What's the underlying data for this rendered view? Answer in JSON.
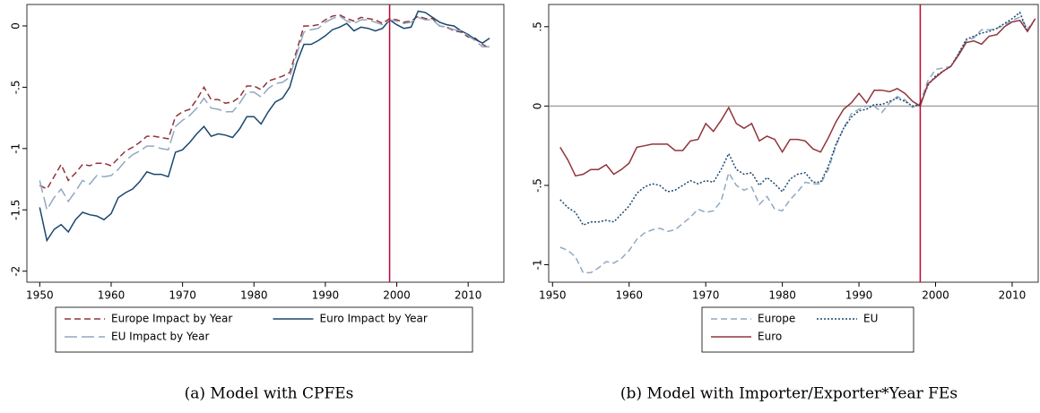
{
  "chart_data": [
    {
      "type": "line",
      "caption": "(a) Model with CPFEs",
      "x": [
        1950,
        1951,
        1952,
        1953,
        1954,
        1955,
        1956,
        1957,
        1958,
        1959,
        1960,
        1961,
        1962,
        1963,
        1964,
        1965,
        1966,
        1967,
        1968,
        1969,
        1970,
        1971,
        1972,
        1973,
        1974,
        1975,
        1976,
        1977,
        1978,
        1979,
        1980,
        1981,
        1982,
        1983,
        1984,
        1985,
        1986,
        1987,
        1988,
        1989,
        1990,
        1991,
        1992,
        1993,
        1994,
        1995,
        1996,
        1997,
        1998,
        1999,
        2000,
        2001,
        2002,
        2003,
        2004,
        2005,
        2006,
        2007,
        2008,
        2009,
        2010,
        2011,
        2012,
        2013
      ],
      "series": [
        {
          "name": "Europe Impact by Year",
          "color": "#90353b",
          "dash": "dashed",
          "values": [
            -1.3,
            -1.33,
            -1.23,
            -1.13,
            -1.26,
            -1.2,
            -1.13,
            -1.14,
            -1.12,
            -1.12,
            -1.14,
            -1.08,
            -1.02,
            -0.99,
            -0.95,
            -0.9,
            -0.9,
            -0.91,
            -0.92,
            -0.74,
            -0.7,
            -0.68,
            -0.6,
            -0.5,
            -0.6,
            -0.6,
            -0.63,
            -0.62,
            -0.58,
            -0.49,
            -0.49,
            -0.52,
            -0.45,
            -0.43,
            -0.41,
            -0.38,
            -0.2,
            0.0,
            0.0,
            0.01,
            0.05,
            0.08,
            0.09,
            0.06,
            0.04,
            0.07,
            0.06,
            0.05,
            0.02,
            0.06,
            0.05,
            0.03,
            0.04,
            0.08,
            0.06,
            0.06,
            0.0,
            -0.01,
            -0.04,
            -0.05,
            -0.09,
            -0.1,
            -0.15,
            -0.18
          ]
        },
        {
          "name": "Euro Impact by Year",
          "color": "#1a476f",
          "dash": "solid",
          "values": [
            -1.48,
            -1.75,
            -1.66,
            -1.62,
            -1.68,
            -1.58,
            -1.52,
            -1.54,
            -1.55,
            -1.58,
            -1.53,
            -1.4,
            -1.36,
            -1.33,
            -1.27,
            -1.19,
            -1.21,
            -1.21,
            -1.23,
            -1.03,
            -1.01,
            -0.95,
            -0.88,
            -0.82,
            -0.9,
            -0.88,
            -0.89,
            -0.91,
            -0.84,
            -0.74,
            -0.74,
            -0.8,
            -0.7,
            -0.62,
            -0.59,
            -0.5,
            -0.3,
            -0.15,
            -0.15,
            -0.12,
            -0.08,
            -0.03,
            -0.01,
            0.02,
            -0.04,
            -0.01,
            -0.02,
            -0.04,
            -0.02,
            0.05,
            0.01,
            -0.02,
            -0.01,
            0.12,
            0.11,
            0.07,
            0.03,
            0.01,
            0.0,
            -0.04,
            -0.07,
            -0.11,
            -0.14,
            -0.1
          ]
        },
        {
          "name": "EU Impact by Year",
          "color": "#90a8c0",
          "dash": "longdash",
          "values": [
            -1.26,
            -1.5,
            -1.4,
            -1.33,
            -1.43,
            -1.35,
            -1.26,
            -1.29,
            -1.22,
            -1.23,
            -1.22,
            -1.17,
            -1.1,
            -1.05,
            -1.02,
            -0.98,
            -0.98,
            -1.0,
            -1.01,
            -0.82,
            -0.77,
            -0.73,
            -0.67,
            -0.59,
            -0.67,
            -0.68,
            -0.7,
            -0.7,
            -0.63,
            -0.54,
            -0.54,
            -0.58,
            -0.51,
            -0.47,
            -0.46,
            -0.42,
            -0.23,
            -0.05,
            -0.03,
            -0.02,
            0.03,
            0.06,
            0.08,
            0.04,
            0.02,
            0.05,
            0.05,
            0.03,
            0.01,
            0.05,
            0.04,
            0.02,
            0.03,
            0.07,
            0.05,
            0.05,
            0.0,
            -0.01,
            -0.03,
            -0.04,
            -0.08,
            -0.12,
            -0.17,
            -0.17
          ]
        }
      ],
      "xlim": [
        1948.2,
        2015
      ],
      "xticks": [
        1950,
        1960,
        1970,
        1980,
        1990,
        2000,
        2010
      ],
      "ylim": [
        -2.09,
        0.175
      ],
      "yticks": [
        0,
        {
          "value": -0.5,
          "label": "-.5"
        },
        -1,
        {
          "value": -1.5,
          "label": "-1.5"
        },
        -2
      ],
      "vline": 1999,
      "vline_color": "#c10534",
      "legend": "bottom",
      "grid": false
    },
    {
      "type": "line",
      "caption": "(b) Model with Importer/Exporter*Year FEs",
      "x": [
        1951,
        1952,
        1953,
        1954,
        1955,
        1956,
        1957,
        1958,
        1959,
        1960,
        1961,
        1962,
        1963,
        1964,
        1965,
        1966,
        1967,
        1968,
        1969,
        1970,
        1971,
        1972,
        1973,
        1974,
        1975,
        1976,
        1977,
        1978,
        1979,
        1980,
        1981,
        1982,
        1983,
        1984,
        1985,
        1986,
        1987,
        1988,
        1989,
        1990,
        1991,
        1992,
        1993,
        1994,
        1995,
        1996,
        1997,
        1998,
        1999,
        2000,
        2001,
        2002,
        2003,
        2004,
        2005,
        2006,
        2007,
        2008,
        2009,
        2010,
        2011,
        2012,
        2013
      ],
      "series": [
        {
          "name": "Europe",
          "color": "#90a8c0",
          "dash": "dashed",
          "values": [
            -0.89,
            -0.91,
            -0.95,
            -1.05,
            -1.05,
            -1.02,
            -0.98,
            -0.99,
            -0.96,
            -0.91,
            -0.84,
            -0.8,
            -0.78,
            -0.77,
            -0.79,
            -0.78,
            -0.74,
            -0.7,
            -0.65,
            -0.67,
            -0.66,
            -0.6,
            -0.42,
            -0.5,
            -0.53,
            -0.51,
            -0.62,
            -0.57,
            -0.65,
            -0.66,
            -0.59,
            -0.54,
            -0.48,
            -0.49,
            -0.49,
            -0.4,
            -0.25,
            -0.14,
            -0.05,
            -0.02,
            0.0,
            0.0,
            -0.04,
            0.02,
            0.06,
            0.04,
            -0.01,
            0.02,
            0.16,
            0.23,
            0.24,
            0.25,
            0.33,
            0.41,
            0.43,
            0.48,
            0.48,
            0.49,
            0.51,
            0.54,
            0.56,
            0.49,
            0.53
          ]
        },
        {
          "name": "EU",
          "color": "#1a476f",
          "dash": "dotted",
          "values": [
            -0.59,
            -0.64,
            -0.67,
            -0.75,
            -0.73,
            -0.73,
            -0.72,
            -0.73,
            -0.68,
            -0.63,
            -0.55,
            -0.51,
            -0.49,
            -0.5,
            -0.54,
            -0.53,
            -0.5,
            -0.47,
            -0.49,
            -0.47,
            -0.48,
            -0.4,
            -0.3,
            -0.4,
            -0.43,
            -0.42,
            -0.5,
            -0.45,
            -0.49,
            -0.54,
            -0.46,
            -0.43,
            -0.42,
            -0.48,
            -0.48,
            -0.38,
            -0.24,
            -0.14,
            -0.07,
            -0.03,
            -0.02,
            0.01,
            0.01,
            0.03,
            0.05,
            0.03,
            0.0,
            0.01,
            0.13,
            0.19,
            0.22,
            0.25,
            0.33,
            0.42,
            0.44,
            0.46,
            0.47,
            0.49,
            0.52,
            0.55,
            0.59,
            0.47,
            0.55
          ]
        },
        {
          "name": "Euro",
          "color": "#90353b",
          "dash": "solid",
          "values": [
            -0.26,
            -0.34,
            -0.44,
            -0.43,
            -0.4,
            -0.4,
            -0.37,
            -0.43,
            -0.4,
            -0.36,
            -0.26,
            -0.25,
            -0.24,
            -0.24,
            -0.24,
            -0.28,
            -0.28,
            -0.22,
            -0.21,
            -0.11,
            -0.16,
            -0.09,
            -0.01,
            -0.11,
            -0.14,
            -0.11,
            -0.22,
            -0.19,
            -0.21,
            -0.29,
            -0.21,
            -0.21,
            -0.22,
            -0.27,
            -0.29,
            -0.2,
            -0.1,
            -0.02,
            0.02,
            0.08,
            0.02,
            0.1,
            0.1,
            0.09,
            0.11,
            0.08,
            0.03,
            0.0,
            0.14,
            0.18,
            0.22,
            0.25,
            0.32,
            0.4,
            0.41,
            0.39,
            0.44,
            0.45,
            0.5,
            0.53,
            0.54,
            0.47,
            0.55
          ]
        }
      ],
      "xlim": [
        1949.5,
        2013.4
      ],
      "xticks": [
        1950,
        1960,
        1970,
        1980,
        1990,
        2000,
        2010
      ],
      "ylim": [
        -1.11,
        0.64
      ],
      "yticks": [
        -1,
        {
          "value": -0.5,
          "label": "-.5"
        },
        0,
        {
          "value": 0.5,
          "label": ".5"
        }
      ],
      "vline": 1998,
      "vline_color": "#c10534",
      "hline": 0,
      "hline_color": "#999999",
      "legend": "bottom",
      "grid": false
    }
  ]
}
